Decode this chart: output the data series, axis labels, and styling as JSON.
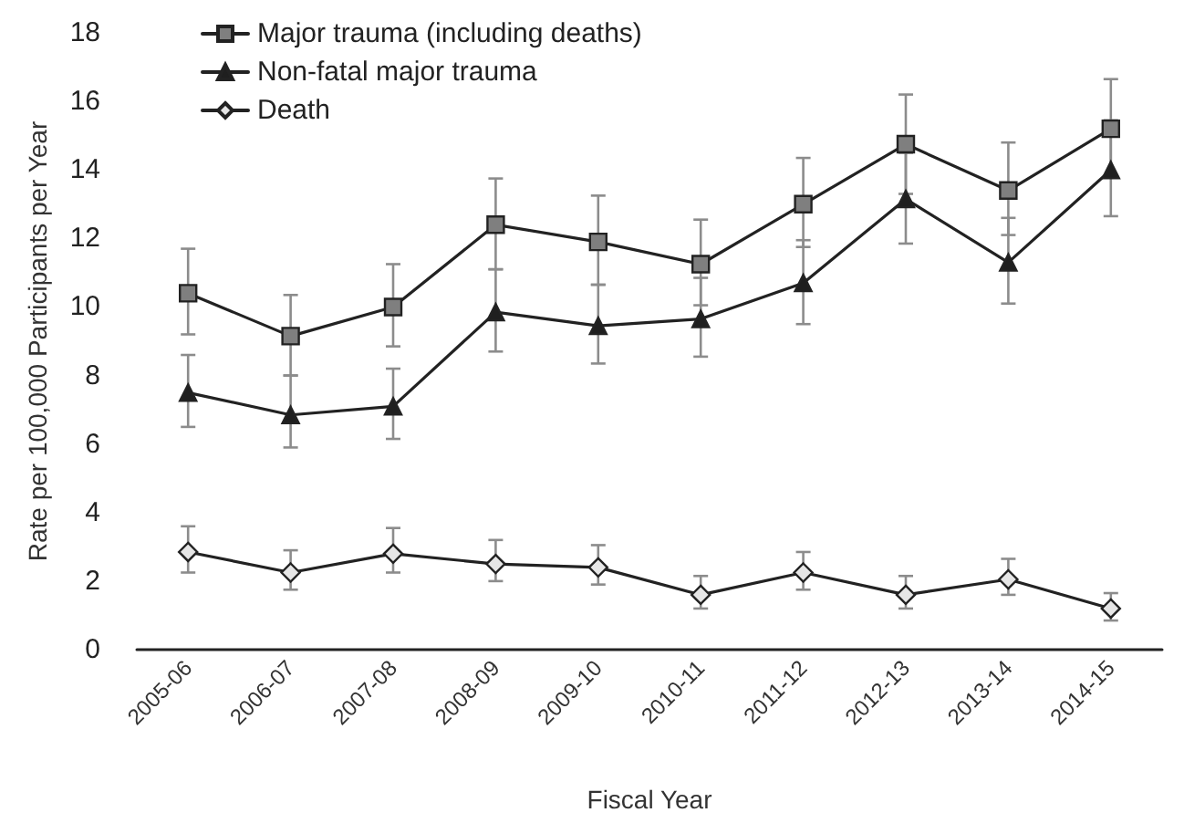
{
  "chart_data": {
    "type": "line",
    "xlabel": "Fiscal Year",
    "ylabel": "Rate per 100,000 Participants per Year",
    "categories": [
      "2005-06",
      "2006-07",
      "2007-08",
      "2008-09",
      "2009-10",
      "2010-11",
      "2011-12",
      "2012-13",
      "2013-14",
      "2014-15"
    ],
    "ylim": [
      0,
      18
    ],
    "yticks": [
      0,
      2,
      4,
      6,
      8,
      10,
      12,
      14,
      16,
      18
    ],
    "grid": false,
    "legend": "top left",
    "series": [
      {
        "name": "Major trauma (including deaths)",
        "color": "#7f7f7f",
        "marker": "square",
        "values": [
          10.4,
          9.15,
          10.0,
          12.4,
          11.9,
          11.25,
          13.0,
          14.75,
          13.4,
          15.2
        ],
        "errors": [
          [
            9.2,
            11.7
          ],
          [
            8.0,
            10.35
          ],
          [
            8.85,
            11.25
          ],
          [
            11.1,
            13.75
          ],
          [
            10.65,
            13.25
          ],
          [
            10.05,
            12.55
          ],
          [
            11.75,
            14.35
          ],
          [
            13.3,
            16.2
          ],
          [
            12.1,
            14.8
          ],
          [
            13.8,
            16.65
          ]
        ]
      },
      {
        "name": "Non-fatal major trauma",
        "color": "#1f1f1f",
        "marker": "triangle",
        "values": [
          7.5,
          6.85,
          7.1,
          9.85,
          9.45,
          9.65,
          10.7,
          13.15,
          11.3,
          14.0
        ],
        "errors": [
          [
            6.5,
            8.6
          ],
          [
            5.9,
            8.0
          ],
          [
            6.15,
            8.2
          ],
          [
            8.7,
            11.1
          ],
          [
            8.35,
            10.65
          ],
          [
            8.55,
            10.85
          ],
          [
            9.5,
            11.95
          ],
          [
            11.85,
            14.5
          ],
          [
            10.1,
            12.6
          ],
          [
            12.65,
            15.45
          ]
        ]
      },
      {
        "name": "Death",
        "color": "#e6e6e6",
        "marker": "diamond",
        "values": [
          2.85,
          2.25,
          2.8,
          2.5,
          2.4,
          1.6,
          2.25,
          1.6,
          2.05,
          1.2
        ],
        "errors": [
          [
            2.25,
            3.6
          ],
          [
            1.75,
            2.9
          ],
          [
            2.25,
            3.55
          ],
          [
            2.0,
            3.2
          ],
          [
            1.9,
            3.05
          ],
          [
            1.2,
            2.15
          ],
          [
            1.75,
            2.85
          ],
          [
            1.2,
            2.15
          ],
          [
            1.6,
            2.65
          ],
          [
            0.85,
            1.65
          ]
        ]
      }
    ]
  }
}
